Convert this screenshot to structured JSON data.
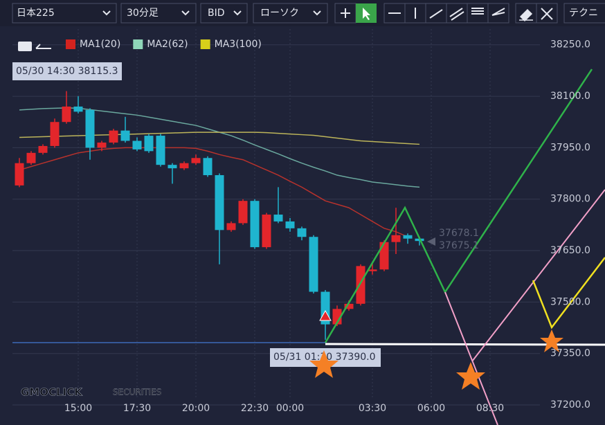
{
  "toolbar": {
    "symbol": "日本225",
    "interval": "30分足",
    "side": "BID",
    "style": "ローソク",
    "technical": "テクニ"
  },
  "logo": {
    "brand": "GMOCLICK",
    "suffix": "SECURITIES"
  },
  "crosshair": {
    "high_label": "05/30 14:30 38115.3",
    "low_label": "05/31 01:30 37390.0",
    "last_price_1": "37678.1",
    "last_price_2": "37675.1"
  },
  "chart_data": {
    "type": "candlestick",
    "categories": [
      null,
      null,
      null,
      null,
      null,
      "15:00",
      null,
      null,
      null,
      null,
      "17:30",
      null,
      null,
      null,
      null,
      "20:00",
      null,
      null,
      null,
      null,
      "22:30",
      null,
      null,
      "00:00",
      null,
      null,
      null,
      null,
      null,
      null,
      "03:30",
      null,
      null,
      null,
      null,
      "06:00",
      null,
      null,
      null,
      null,
      "08:30"
    ],
    "open": [
      37840,
      37905,
      37935,
      37955,
      38025,
      38070,
      38060,
      37950,
      37965,
      38000,
      37970,
      37985,
      37985,
      37900,
      37890,
      37905,
      37920,
      37870,
      37710,
      37730,
      37795,
      37660,
      37755,
      37735,
      37715,
      37690,
      37530,
      37435,
      37480,
      37495,
      37590,
      37595,
      37675,
      37695,
      37685,
      null,
      null,
      null,
      null,
      null,
      null
    ],
    "high": [
      37920,
      37940,
      37960,
      38035,
      38115,
      38100,
      38065,
      37970,
      38005,
      38040,
      37980,
      37990,
      37990,
      37905,
      37910,
      37930,
      37925,
      37875,
      37735,
      37800,
      37800,
      37760,
      37835,
      37745,
      37720,
      37695,
      37535,
      37490,
      37505,
      37610,
      37615,
      37680,
      37775,
      37700,
      37690,
      null,
      null,
      null,
      null,
      null,
      null
    ],
    "low": [
      37835,
      37900,
      37930,
      37950,
      38020,
      38050,
      37915,
      37940,
      37960,
      37965,
      37940,
      37935,
      37895,
      37845,
      37885,
      37900,
      37865,
      37610,
      37705,
      37725,
      37655,
      37655,
      37730,
      37705,
      37680,
      37525,
      37390,
      37430,
      37475,
      37490,
      37580,
      37590,
      37640,
      37670,
      37665,
      null,
      null,
      null,
      null,
      null,
      null
    ],
    "close": [
      37905,
      37935,
      37955,
      38025,
      38070,
      38055,
      37950,
      37965,
      38000,
      37970,
      37945,
      37940,
      37900,
      37890,
      37905,
      37920,
      37870,
      37710,
      37730,
      37795,
      37660,
      37755,
      37735,
      37715,
      37690,
      37530,
      37435,
      37480,
      37495,
      37605,
      37595,
      37675,
      37695,
      37685,
      37678,
      null,
      null,
      null,
      null,
      null,
      null
    ],
    "up_color": "#e3262b",
    "down_color": "#1fb4cf",
    "series": [
      {
        "name": "MA1(20)",
        "color": "#d4231f",
        "line_color": "#b8322c",
        "values": [
          37885,
          37895,
          37905,
          37915,
          37925,
          37935,
          37940,
          37945,
          37948,
          37950,
          37950,
          37950,
          37950,
          37950,
          37950,
          37948,
          37940,
          37930,
          37922,
          37915,
          37900,
          37885,
          37870,
          37852,
          37835,
          37815,
          37795,
          37785,
          37775,
          37755,
          37735,
          37715,
          37705,
          37690,
          null,
          null,
          null,
          null,
          null,
          null,
          null
        ]
      },
      {
        "name": "MA2(62)",
        "color": "#8fd6b9",
        "line_color": "#6aa89e",
        "values": [
          38060,
          38062,
          38064,
          38065,
          38066,
          38065,
          38061,
          38057,
          38053,
          38049,
          38045,
          38039,
          38033,
          38027,
          38021,
          38015,
          38005,
          37995,
          37985,
          37972,
          37958,
          37945,
          37932,
          37918,
          37905,
          37893,
          37882,
          37870,
          37863,
          37857,
          37850,
          37846,
          37842,
          37838,
          37835,
          null,
          null,
          null,
          null,
          null,
          null
        ]
      },
      {
        "name": "MA3(100)",
        "color": "#d8d01a",
        "line_color": "#bdb55a",
        "values": [
          37980,
          37981,
          37982,
          37983,
          37984,
          37985,
          37986,
          37987,
          37988,
          37989,
          37990,
          37991,
          37992,
          37993,
          37994,
          37995,
          37995,
          37995,
          37995,
          37995,
          37995,
          37994,
          37992,
          37990,
          37988,
          37986,
          37982,
          37978,
          37974,
          37970,
          37968,
          37966,
          37964,
          37962,
          37960,
          null,
          null,
          null,
          null,
          null,
          null
        ]
      }
    ],
    "ylim": [
      37190,
      38310
    ],
    "yticks": [
      {
        "value": 37200,
        "label": "37200.0"
      },
      {
        "value": 37350,
        "label": "37350.0"
      },
      {
        "value": 37500,
        "label": "37500.0"
      },
      {
        "value": 37650,
        "label": "37650.0"
      },
      {
        "value": 37800,
        "label": "37800.0"
      },
      {
        "value": 37950,
        "label": "37950.0"
      },
      {
        "value": 38100,
        "label": "38100.0"
      },
      {
        "value": 38250,
        "label": "38250.0"
      }
    ],
    "grid": true
  }
}
